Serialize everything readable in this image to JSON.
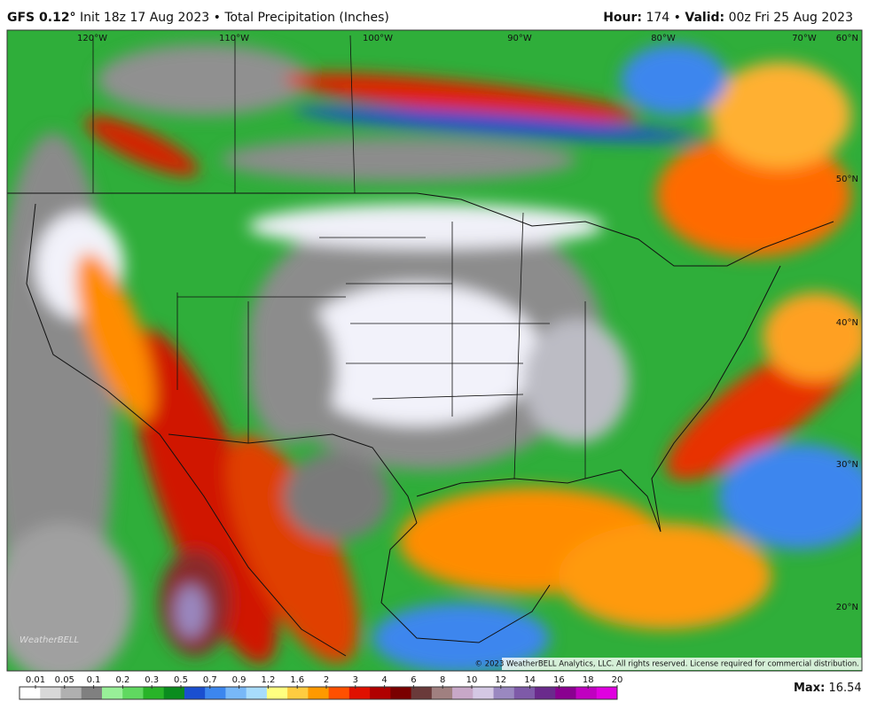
{
  "header": {
    "model": "GFS 0.12°",
    "init": "Init 18z 17 Aug 2023",
    "separator": "•",
    "product": "Total Precipitation (Inches)",
    "hour_label": "Hour:",
    "hour": "174",
    "valid_label": "Valid:",
    "valid": "00z Fri 25 Aug 2023"
  },
  "map": {
    "lon_labels": [
      "120°W",
      "110°W",
      "100°W",
      "90°W",
      "80°W",
      "70°W"
    ],
    "lat_labels": [
      "60°N",
      "50°N",
      "40°N",
      "30°N",
      "20°N"
    ],
    "logo": "WeatherBELL",
    "copyright": "© 2023 WeatherBELL Analytics, LLC. All rights reserved. License required for commercial distribution."
  },
  "legend": {
    "ticks": [
      0.01,
      0.05,
      0.1,
      0.2,
      0.3,
      0.5,
      0.7,
      0.9,
      1.2,
      1.6,
      2,
      3,
      4,
      6,
      8,
      10,
      12,
      14,
      16,
      18,
      20
    ],
    "colors": [
      "#ffffff",
      "#d8d8d8",
      "#b0b0b0",
      "#808080",
      "#98f098",
      "#60d860",
      "#28b428",
      "#0a8c1e",
      "#1a4fd0",
      "#3c86ee",
      "#78b8f8",
      "#a8dcfc",
      "#ffff80",
      "#ffcc40",
      "#ff9900",
      "#ff5000",
      "#e01000",
      "#b00000",
      "#7a0000",
      "#6a3a3a",
      "#a08080"
    ],
    "colors_high": [
      "#c8a8c8",
      "#d4c8e4",
      "#9a88c0",
      "#7e5aa8",
      "#6a2a8c",
      "#8a0090",
      "#c000c0",
      "#e000e0"
    ]
  },
  "max": {
    "label": "Max:",
    "value": "16.54"
  }
}
